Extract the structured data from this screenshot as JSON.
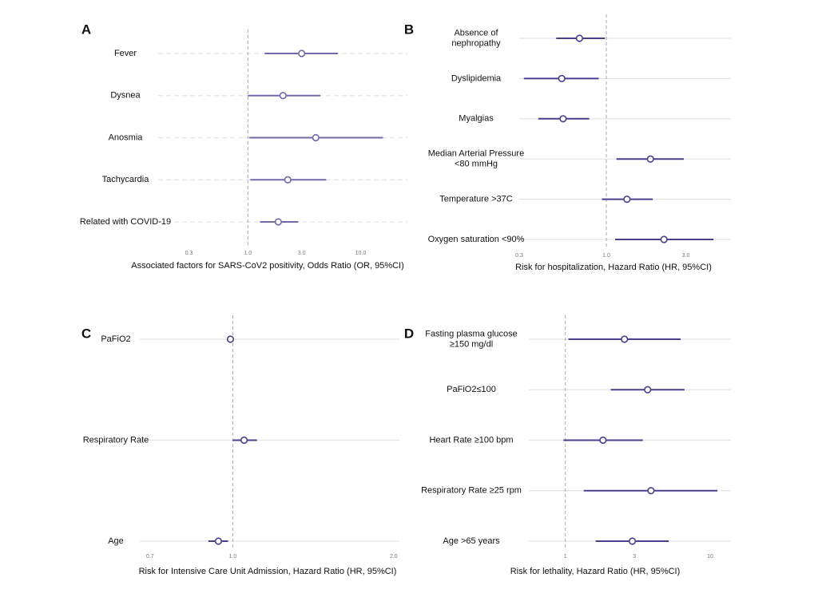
{
  "chart_data": [
    {
      "type": "forest",
      "title": "A",
      "xlabel": "Associated factors for SARS-CoV2 positivity, Odds Ratio (OR, 95%CI)",
      "categories": [
        "Fever",
        "Dysnea",
        "Anosmia",
        "Tachycardia",
        "Related  with COVID-19"
      ],
      "values": [
        3.0,
        2.05,
        4.0,
        2.26,
        1.86
      ],
      "lower": [
        1.41,
        1.0,
        1.03,
        1.05,
        1.28
      ],
      "upper": [
        6.3,
        4.4,
        15.8,
        4.95,
        2.8
      ],
      "color": "#7468ad",
      "log": true,
      "grid": true,
      "grid_style": "dashed",
      "xlim": [
        0.16,
        26
      ],
      "xticks": [
        0.3,
        {
          "value": 1,
          "label": "1.0"
        },
        {
          "value": 3,
          "label": "3.0"
        },
        {
          "value": 10,
          "label": "10.0"
        }
      ]
    },
    {
      "type": "forest",
      "title": "B",
      "xlabel": "Risk for hospitalization, Hazard Ratio (HR, 95%CI)",
      "categories": [
        "Absence of\nnephropathy",
        "Dyslipidemia",
        "Myalgias",
        "Median Arterial Pressure\n<80 mmHg",
        "Temperature >37C",
        "Oxygen saturation <90%"
      ],
      "values": [
        0.69,
        0.54,
        0.55,
        1.84,
        1.33,
        2.22
      ],
      "lower": [
        0.5,
        0.32,
        0.39,
        1.15,
        0.94,
        1.13
      ],
      "upper": [
        0.98,
        0.9,
        0.79,
        2.92,
        1.9,
        4.4
      ],
      "color": "#4b3f8c",
      "log": true,
      "grid": true,
      "grid_style": "solid",
      "xlim": [
        0.3,
        5.6
      ],
      "xticks": [
        0.3,
        {
          "value": 1,
          "label": "1.0"
        },
        {
          "value": 3,
          "label": "3.0"
        }
      ]
    },
    {
      "type": "forest",
      "title": "C",
      "xlabel": "Risk for Intensive Care Unit Admission, Hazard Ratio (HR, 95%CI)",
      "categories": [
        "PaFiO2",
        "Respiratory Rate",
        "Age"
      ],
      "values": [
        0.99,
        1.05,
        0.94
      ],
      "lower": [
        0.98,
        1.0,
        0.9
      ],
      "upper": [
        1.0,
        1.11,
        0.98
      ],
      "color": "#4b3f8c",
      "log": true,
      "grid": true,
      "grid_style": "solid",
      "xlim": [
        0.67,
        2.05
      ],
      "xticks": [
        0.7,
        {
          "value": 1,
          "label": "1.0"
        },
        {
          "value": 2,
          "label": "2.0"
        }
      ]
    },
    {
      "type": "forest",
      "title": "D",
      "xlabel": "Risk for lethality, Hazard Ratio (HR, 95%CI)",
      "categories": [
        "Fasting plasma glucose\n≥150 mg/dl",
        "PaFiO2≤100",
        "Heart Rate ≥100 bpm",
        "Respiratory Rate ≥25 rpm",
        "Age >65 years"
      ],
      "values": [
        2.56,
        3.7,
        1.82,
        3.9,
        2.9
      ],
      "lower": [
        1.05,
        2.06,
        0.97,
        1.34,
        1.62
      ],
      "upper": [
        6.25,
        6.65,
        3.43,
        11.2,
        5.17
      ],
      "color": "#4b3f8c",
      "log": true,
      "grid": true,
      "grid_style": "solid",
      "xlim": [
        0.56,
        13.9
      ],
      "xticks": [
        1,
        3,
        10
      ]
    }
  ]
}
